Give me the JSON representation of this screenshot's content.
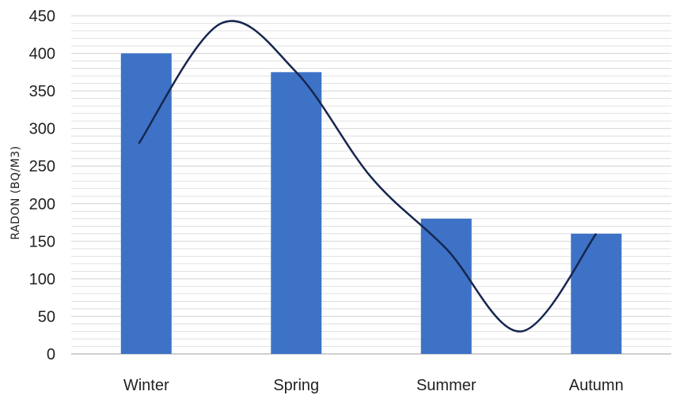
{
  "chart_data": {
    "type": "bar",
    "categories": [
      "Winter",
      "Spring",
      "Summer",
      "Autumn"
    ],
    "values": [
      400,
      375,
      180,
      160
    ],
    "ylabel": "RADON (BQ/M3)",
    "xlabel": "",
    "ylim": [
      0,
      450
    ],
    "yticks": [
      0,
      50,
      100,
      150,
      200,
      250,
      300,
      350,
      400,
      450
    ],
    "grid": true,
    "trendline": {
      "type": "smooth-line",
      "points": [
        {
          "x": 0.95,
          "y": 280
        },
        {
          "x": 1.5,
          "y": 440
        },
        {
          "x": 2.0,
          "y": 375
        },
        {
          "x": 2.5,
          "y": 235
        },
        {
          "x": 3.0,
          "y": 140
        },
        {
          "x": 3.5,
          "y": 30
        },
        {
          "x": 4.0,
          "y": 160
        }
      ]
    },
    "colors": {
      "bar": "#3d72c6",
      "trendline": "#16264f",
      "grid": "#d9d9d9",
      "axis": "#bfbfbf"
    }
  }
}
